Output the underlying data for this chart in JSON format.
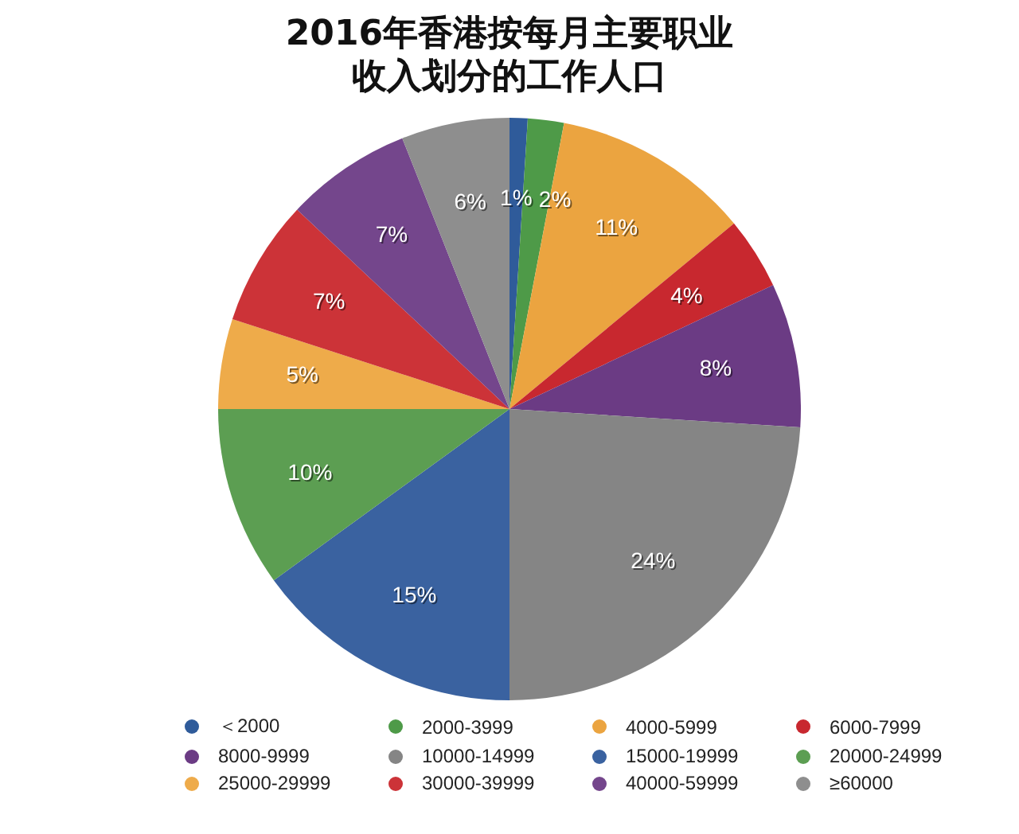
{
  "chart_data": {
    "type": "pie",
    "title": "2016年香港按每月主要职业收入划分的工作人口",
    "categories": [
      "＜2000",
      "2000-3999",
      "4000-5999",
      "6000-7999",
      "8000-9999",
      "10000-14999",
      "15000-19999",
      "20000-24999",
      "25000-29999",
      "30000-39999",
      "40000-59999",
      "≥60000"
    ],
    "values": [
      1,
      2,
      11,
      4,
      8,
      24,
      15,
      10,
      5,
      7,
      7,
      6
    ],
    "value_labels": [
      "1%",
      "2%",
      "11%",
      "4%",
      "8%",
      "24%",
      "15%",
      "10%",
      "5%",
      "7%",
      "7%",
      "6%"
    ],
    "colors": [
      "#2f5b9a",
      "#4e9a48",
      "#eba440",
      "#c8282f",
      "#6b3b84",
      "#858585",
      "#3a62a0",
      "#5c9e52",
      "#eeab4a",
      "#cc3338",
      "#74468c",
      "#8e8e8e"
    ],
    "legend": "bottom"
  }
}
